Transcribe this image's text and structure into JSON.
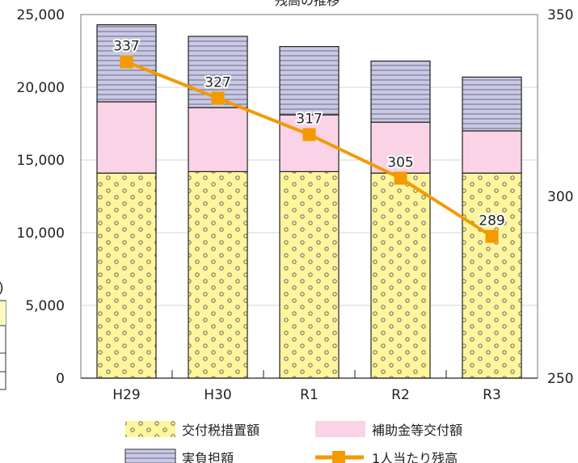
{
  "chart_data": {
    "type": "bar",
    "title": "残高の推移",
    "categories": [
      "H29",
      "H30",
      "R1",
      "R2",
      "R3"
    ],
    "ylim": [
      0,
      25000
    ],
    "y_ticks": [
      "0",
      "5,000",
      "10,000",
      "15,000",
      "20,000",
      "25,000"
    ],
    "y2lim": [
      250,
      350
    ],
    "y2_ticks": [
      "250",
      "300",
      "350"
    ],
    "grid": true,
    "legend_position": "bottom",
    "series": [
      {
        "name": "交付税措置額",
        "type": "bar",
        "stack": "total",
        "color": "#fff59d",
        "pattern": "circles",
        "values": [
          14100,
          14200,
          14200,
          14100,
          14100
        ]
      },
      {
        "name": "補助金等交付額",
        "type": "bar",
        "stack": "total",
        "color": "#fbd3e6",
        "pattern": "solid",
        "values": [
          4900,
          4400,
          3900,
          3500,
          2900
        ]
      },
      {
        "name": "実負担額",
        "type": "bar",
        "stack": "total",
        "color": "#c9c8e8",
        "pattern": "horizontal-lines",
        "values": [
          5300,
          4900,
          4700,
          4200,
          3700
        ]
      },
      {
        "name": "1人当たり残高",
        "type": "line",
        "axis": "right",
        "color": "#f39a00",
        "values": [
          337,
          327,
          317,
          305,
          289
        ],
        "labels": [
          "337",
          "327",
          "317",
          "305",
          "289"
        ]
      }
    ],
    "left_fragment": {
      "text": ")",
      "value": "1"
    }
  }
}
